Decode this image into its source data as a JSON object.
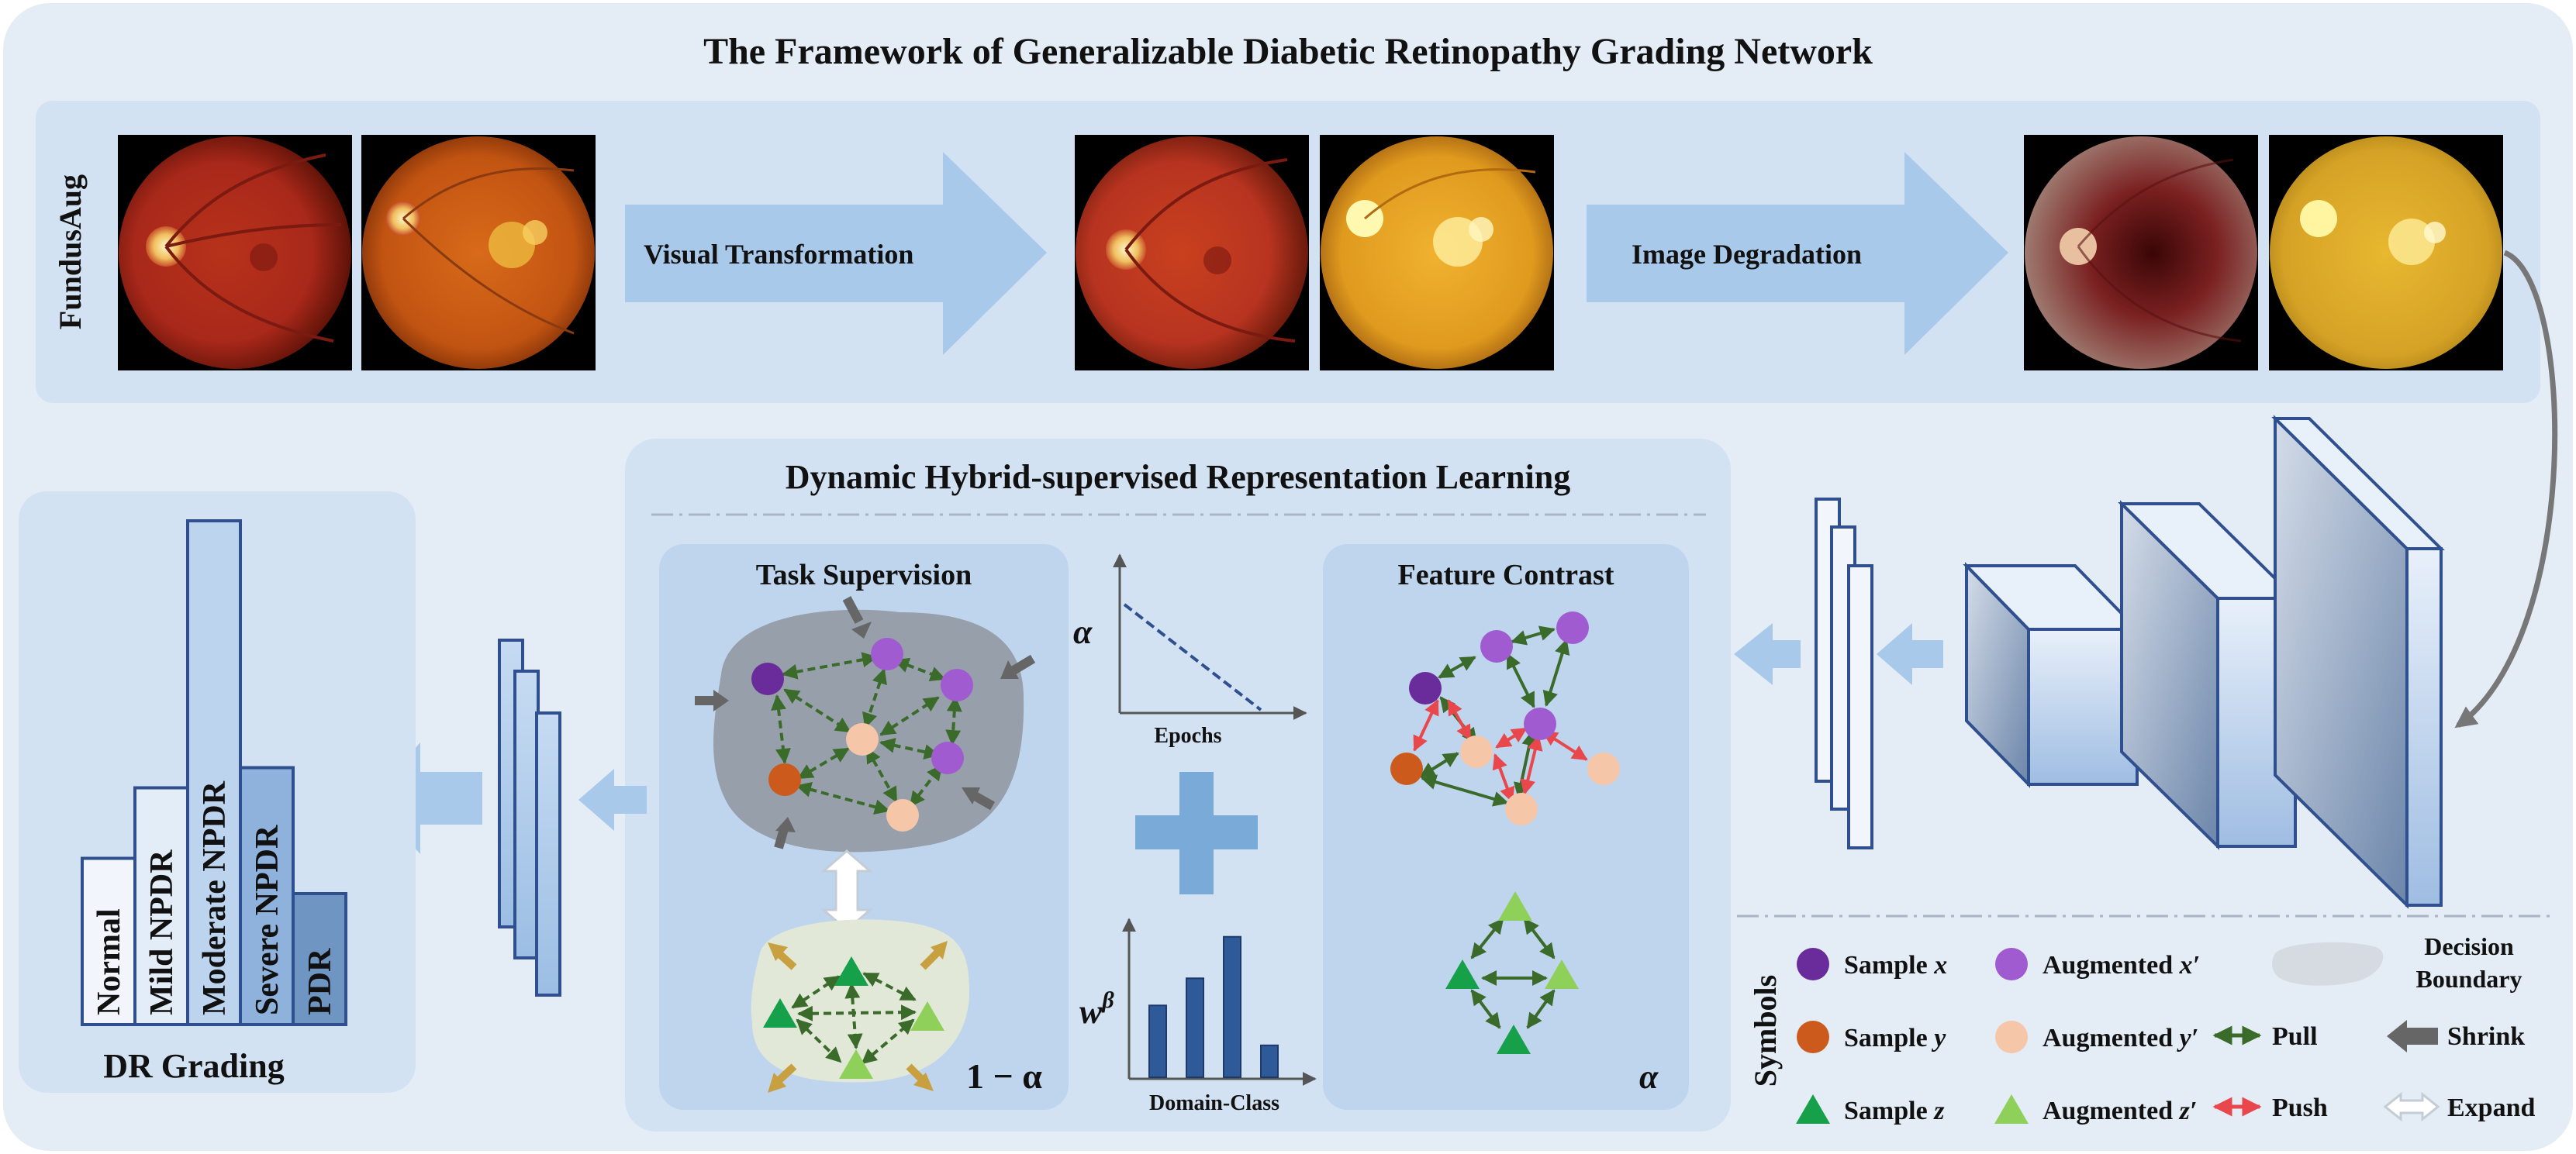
{
  "title": "The Framework of Generalizable Diabetic Retinopathy Grading Network",
  "fundusaug": {
    "label": "FundusAug",
    "step1": "Visual Transformation",
    "step2": "Image Degradation"
  },
  "dhrl": {
    "title": "Dynamic Hybrid-supervised Representation Learning",
    "task_supervision": "Task Supervision",
    "feature_contrast": "Feature Contrast",
    "one_minus_alpha": "1 − α",
    "alpha": "α",
    "alpha_chart": {
      "ylabel": "α",
      "xlabel": "Epochs"
    },
    "weight_chart": {
      "ylabel": "w",
      "ylabel_sup": "β",
      "xlabel": "Domain-Class",
      "bar_values": [
        0.45,
        0.62,
        0.88,
        0.2
      ]
    }
  },
  "dr_grading": {
    "title": "DR Grading",
    "bars": [
      {
        "label": "Normal",
        "level": 0.33
      },
      {
        "label": "Mild NPDR",
        "level": 0.47
      },
      {
        "label": "Moderate NPDR",
        "level": 1.0
      },
      {
        "label": "Severe NPDR",
        "level": 0.51
      },
      {
        "label": "PDR",
        "level": 0.26
      }
    ]
  },
  "symbols": {
    "title": "Symbols",
    "sample_x": "Sample",
    "sample_x_var": "x",
    "sample_y": "Sample",
    "sample_y_var": "y",
    "sample_z": "Sample",
    "sample_z_var": "z",
    "aug_x": "Augmented",
    "aug_x_var": "x′",
    "aug_y": "Augmented",
    "aug_y_var": "y′",
    "aug_z": "Augmented",
    "aug_z_var": "z′",
    "decision_1": "Decision",
    "decision_2": "Boundary",
    "pull": "Pull",
    "shrink": "Shrink",
    "push": "Push",
    "expand": "Expand"
  },
  "colors": {
    "panel_outer": "#e4ecf6",
    "panel_inner": "#d3e2f3",
    "panel_sub": "#bfd5ee",
    "arrow_light": "#a9c9ea",
    "box_stroke": "#2f4f8f",
    "sample_x": "#6a2c9a",
    "aug_x": "#a05bd0",
    "sample_y": "#cc5a1c",
    "aug_y": "#f5c6a8",
    "sample_z": "#16a04a",
    "aug_z": "#8fd05a",
    "pull": "#3a6b2a",
    "push": "#e8474b",
    "shrink": "#666666",
    "expand_in": "#c8b078"
  }
}
